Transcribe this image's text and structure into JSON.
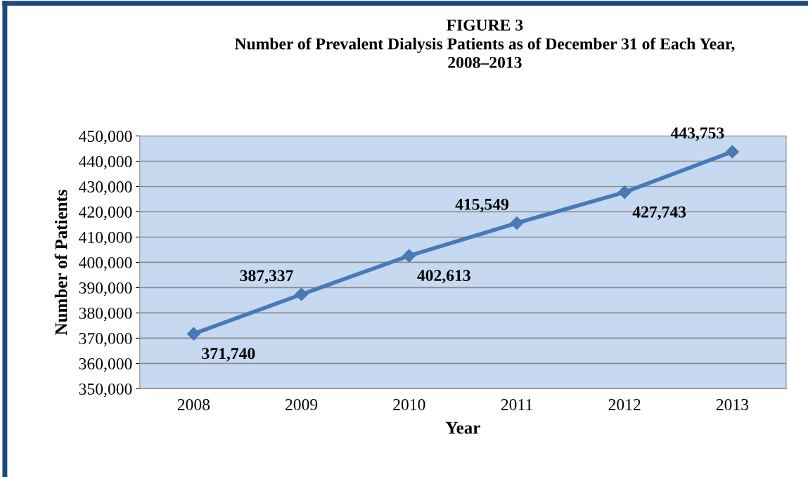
{
  "chart_data": {
    "type": "line",
    "title": "FIGURE 3\nNumber of Prevalent Dialysis Patients as of December 31 of Each Year,\n2008–2013",
    "xlabel": "Year",
    "ylabel": "Number of Patients",
    "categories": [
      "2008",
      "2009",
      "2010",
      "2011",
      "2012",
      "2013"
    ],
    "series": [
      {
        "color": "#4a7ab5",
        "values": [
          371740,
          387337,
          402613,
          415549,
          427743,
          443753
        ],
        "value_labels": [
          "371,740",
          "387,337",
          "402,613",
          "415,549",
          "427,743",
          "443,753"
        ]
      }
    ],
    "ylim": [
      350000,
      450000
    ],
    "yticks": [
      {
        "value": 350000,
        "label": "350,000"
      },
      {
        "value": 360000,
        "label": "360,000"
      },
      {
        "value": 370000,
        "label": "370,000"
      },
      {
        "value": 380000,
        "label": "380,000"
      },
      {
        "value": 390000,
        "label": "390,000"
      },
      {
        "value": 400000,
        "label": "400,000"
      },
      {
        "value": 410000,
        "label": "410,000"
      },
      {
        "value": 420000,
        "label": "420,000"
      },
      {
        "value": 430000,
        "label": "430,000"
      },
      {
        "value": 440000,
        "label": "440,000"
      },
      {
        "value": 450000,
        "label": "450,000"
      }
    ],
    "grid": "y",
    "marker": "diamond",
    "line_style": "solid",
    "legend": false
  }
}
